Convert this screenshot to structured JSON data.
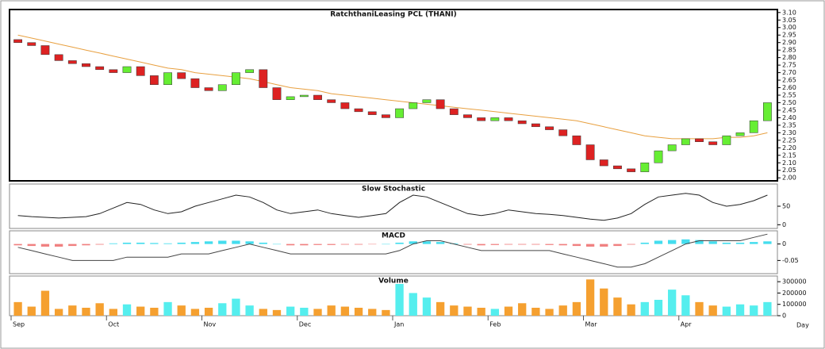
{
  "chart_data": {
    "type": "candlestick",
    "title": "RatchthaniLeasing PCL (THANI)",
    "categories": [
      "Sep",
      null,
      null,
      null,
      null,
      null,
      null,
      "Oct",
      null,
      null,
      null,
      null,
      null,
      null,
      "Nov",
      null,
      null,
      null,
      null,
      null,
      null,
      "Dec",
      null,
      null,
      null,
      null,
      null,
      null,
      "Jan",
      null,
      null,
      null,
      null,
      null,
      null,
      "Feb",
      null,
      null,
      null,
      null,
      null,
      null,
      "Mar",
      null,
      null,
      null,
      null,
      null,
      null,
      "Apr",
      null,
      null,
      null,
      null,
      null,
      null
    ],
    "open": [
      2.92,
      2.9,
      2.88,
      2.82,
      2.78,
      2.76,
      2.74,
      2.72,
      2.7,
      2.74,
      2.68,
      2.62,
      2.7,
      2.66,
      2.6,
      2.58,
      2.62,
      2.7,
      2.72,
      2.6,
      2.52,
      2.54,
      2.55,
      2.52,
      2.5,
      2.46,
      2.44,
      2.42,
      2.4,
      2.46,
      2.5,
      2.52,
      2.46,
      2.42,
      2.4,
      2.38,
      2.4,
      2.38,
      2.36,
      2.34,
      2.32,
      2.28,
      2.22,
      2.12,
      2.08,
      2.06,
      2.04,
      2.1,
      2.18,
      2.22,
      2.26,
      2.24,
      2.22,
      2.28,
      2.3,
      2.38
    ],
    "close": [
      2.9,
      2.88,
      2.82,
      2.78,
      2.76,
      2.74,
      2.72,
      2.7,
      2.74,
      2.68,
      2.62,
      2.7,
      2.66,
      2.6,
      2.58,
      2.62,
      2.7,
      2.72,
      2.6,
      2.52,
      2.54,
      2.55,
      2.52,
      2.5,
      2.46,
      2.44,
      2.42,
      2.4,
      2.46,
      2.5,
      2.52,
      2.46,
      2.42,
      2.4,
      2.38,
      2.4,
      2.38,
      2.36,
      2.34,
      2.32,
      2.28,
      2.22,
      2.12,
      2.08,
      2.06,
      2.04,
      2.1,
      2.18,
      2.22,
      2.26,
      2.24,
      2.22,
      2.28,
      2.3,
      2.38,
      2.5
    ],
    "up_color": "#66ee33",
    "down_color": "#dd2222",
    "moving_average": {
      "color": "#e8a040",
      "values": [
        2.95,
        2.93,
        2.91,
        2.89,
        2.87,
        2.85,
        2.83,
        2.81,
        2.79,
        2.77,
        2.75,
        2.73,
        2.72,
        2.7,
        2.69,
        2.68,
        2.67,
        2.66,
        2.64,
        2.62,
        2.6,
        2.59,
        2.58,
        2.56,
        2.55,
        2.54,
        2.53,
        2.52,
        2.51,
        2.5,
        2.49,
        2.48,
        2.47,
        2.46,
        2.45,
        2.44,
        2.43,
        2.42,
        2.41,
        2.4,
        2.39,
        2.38,
        2.36,
        2.34,
        2.32,
        2.3,
        2.28,
        2.27,
        2.26,
        2.26,
        2.26,
        2.26,
        2.27,
        2.27,
        2.28,
        2.3
      ]
    },
    "ylim": [
      1.98,
      3.12
    ],
    "yticks": [
      {
        "value": 2.0,
        "label": "2.00"
      },
      2.05,
      {
        "value": 2.1,
        "label": "2.10"
      },
      2.15,
      {
        "value": 2.2,
        "label": "2.20"
      },
      2.25,
      {
        "value": 2.3,
        "label": "2.30"
      },
      2.35,
      {
        "value": 2.4,
        "label": "2.40"
      },
      2.45,
      {
        "value": 2.5,
        "label": "2.50"
      },
      2.55,
      {
        "value": 2.6,
        "label": "2.60"
      },
      2.65,
      {
        "value": 2.7,
        "label": "2.70"
      },
      2.75,
      {
        "value": 2.8,
        "label": "2.80"
      },
      2.85,
      {
        "value": 2.9,
        "label": "2.90"
      },
      2.95,
      {
        "value": 3.0,
        "label": "3.00"
      },
      3.05,
      {
        "value": 3.1,
        "label": "3.10"
      }
    ],
    "stochastic": {
      "title": "Slow Stochastic",
      "color": "#222222",
      "ylim": [
        -10,
        110
      ],
      "yticks": [
        0,
        50
      ],
      "values": [
        25,
        22,
        20,
        18,
        20,
        22,
        30,
        45,
        60,
        55,
        40,
        30,
        35,
        50,
        60,
        70,
        80,
        75,
        60,
        40,
        30,
        35,
        40,
        30,
        25,
        20,
        25,
        30,
        60,
        80,
        75,
        60,
        45,
        30,
        25,
        30,
        40,
        35,
        30,
        28,
        25,
        20,
        15,
        12,
        18,
        30,
        55,
        75,
        80,
        85,
        80,
        60,
        50,
        55,
        65,
        80
      ]
    },
    "macd": {
      "title": "MACD",
      "color": "#444444",
      "hist_up": "#44ddee",
      "hist_down": "#f08080",
      "ylim": [
        -0.09,
        0.04
      ],
      "yticks": [
        -0.05,
        0
      ],
      "values": [
        -0.01,
        -0.02,
        -0.03,
        -0.04,
        -0.05,
        -0.05,
        -0.05,
        -0.05,
        -0.04,
        -0.04,
        -0.04,
        -0.04,
        -0.03,
        -0.03,
        -0.03,
        -0.02,
        -0.01,
        0.0,
        -0.01,
        -0.02,
        -0.03,
        -0.03,
        -0.03,
        -0.03,
        -0.03,
        -0.03,
        -0.03,
        -0.03,
        -0.02,
        0.0,
        0.01,
        0.01,
        0.0,
        -0.01,
        -0.02,
        -0.02,
        -0.02,
        -0.02,
        -0.02,
        -0.02,
        -0.03,
        -0.04,
        -0.05,
        -0.06,
        -0.07,
        -0.07,
        -0.06,
        -0.04,
        -0.02,
        0.0,
        0.01,
        0.01,
        0.01,
        0.01,
        0.02,
        0.03
      ],
      "histogram": [
        -0.004,
        -0.006,
        -0.008,
        -0.008,
        -0.006,
        -0.004,
        -0.002,
        0.002,
        0.004,
        0.004,
        0.003,
        0.002,
        0.004,
        0.006,
        0.008,
        0.01,
        0.01,
        0.008,
        0.004,
        0.0,
        -0.004,
        -0.004,
        -0.003,
        -0.003,
        -0.002,
        -0.002,
        -0.001,
        0.0,
        0.004,
        0.008,
        0.008,
        0.006,
        0.002,
        -0.002,
        -0.004,
        -0.003,
        -0.002,
        -0.002,
        -0.002,
        -0.003,
        -0.004,
        -0.006,
        -0.008,
        -0.008,
        -0.006,
        -0.002,
        0.004,
        0.01,
        0.012,
        0.014,
        0.012,
        0.008,
        0.004,
        0.004,
        0.006,
        0.008
      ]
    },
    "volume": {
      "title": "Volume",
      "up_color": "#55eeee",
      "down_color": "#f5a030",
      "ylim": [
        0,
        350000
      ],
      "yticks": [
        0,
        100000,
        200000,
        300000
      ],
      "values": [
        120000,
        80000,
        220000,
        60000,
        90000,
        70000,
        110000,
        60000,
        100000,
        80000,
        70000,
        120000,
        90000,
        60000,
        70000,
        110000,
        150000,
        90000,
        60000,
        50000,
        80000,
        70000,
        60000,
        90000,
        80000,
        70000,
        60000,
        50000,
        280000,
        200000,
        160000,
        120000,
        90000,
        80000,
        70000,
        60000,
        80000,
        110000,
        70000,
        60000,
        90000,
        120000,
        320000,
        240000,
        160000,
        100000,
        120000,
        140000,
        230000,
        180000,
        120000,
        90000,
        80000,
        100000,
        90000,
        120000
      ]
    },
    "x_unit": "Day"
  }
}
